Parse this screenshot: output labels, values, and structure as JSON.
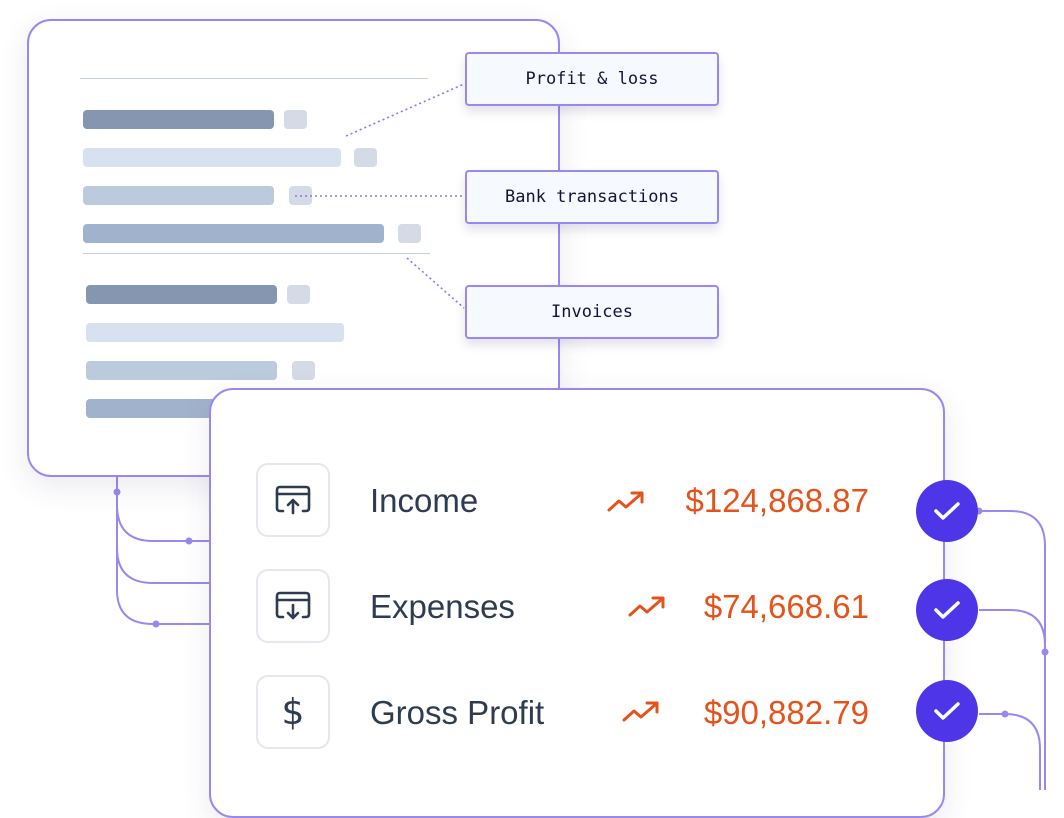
{
  "tags": {
    "profit_loss": "Profit & loss",
    "bank_transactions": "Bank transactions",
    "invoices": "Invoices"
  },
  "metrics": [
    {
      "label": "Income",
      "value": "$124,868.87",
      "icon": "card-upload-icon",
      "trend": "trend-up-icon",
      "status": "check-icon"
    },
    {
      "label": "Expenses",
      "value": "$74,668.61",
      "icon": "card-download-icon",
      "trend": "trend-up-icon",
      "status": "check-icon"
    },
    {
      "label": "Gross Profit",
      "value": "$90,882.79",
      "icon": "dollar-icon",
      "trend": "trend-up-icon",
      "status": "check-icon"
    }
  ],
  "colors": {
    "accent": "#9a88f2",
    "check": "#4f35e8",
    "value": "#e4531b",
    "text": "#2e3b50"
  }
}
